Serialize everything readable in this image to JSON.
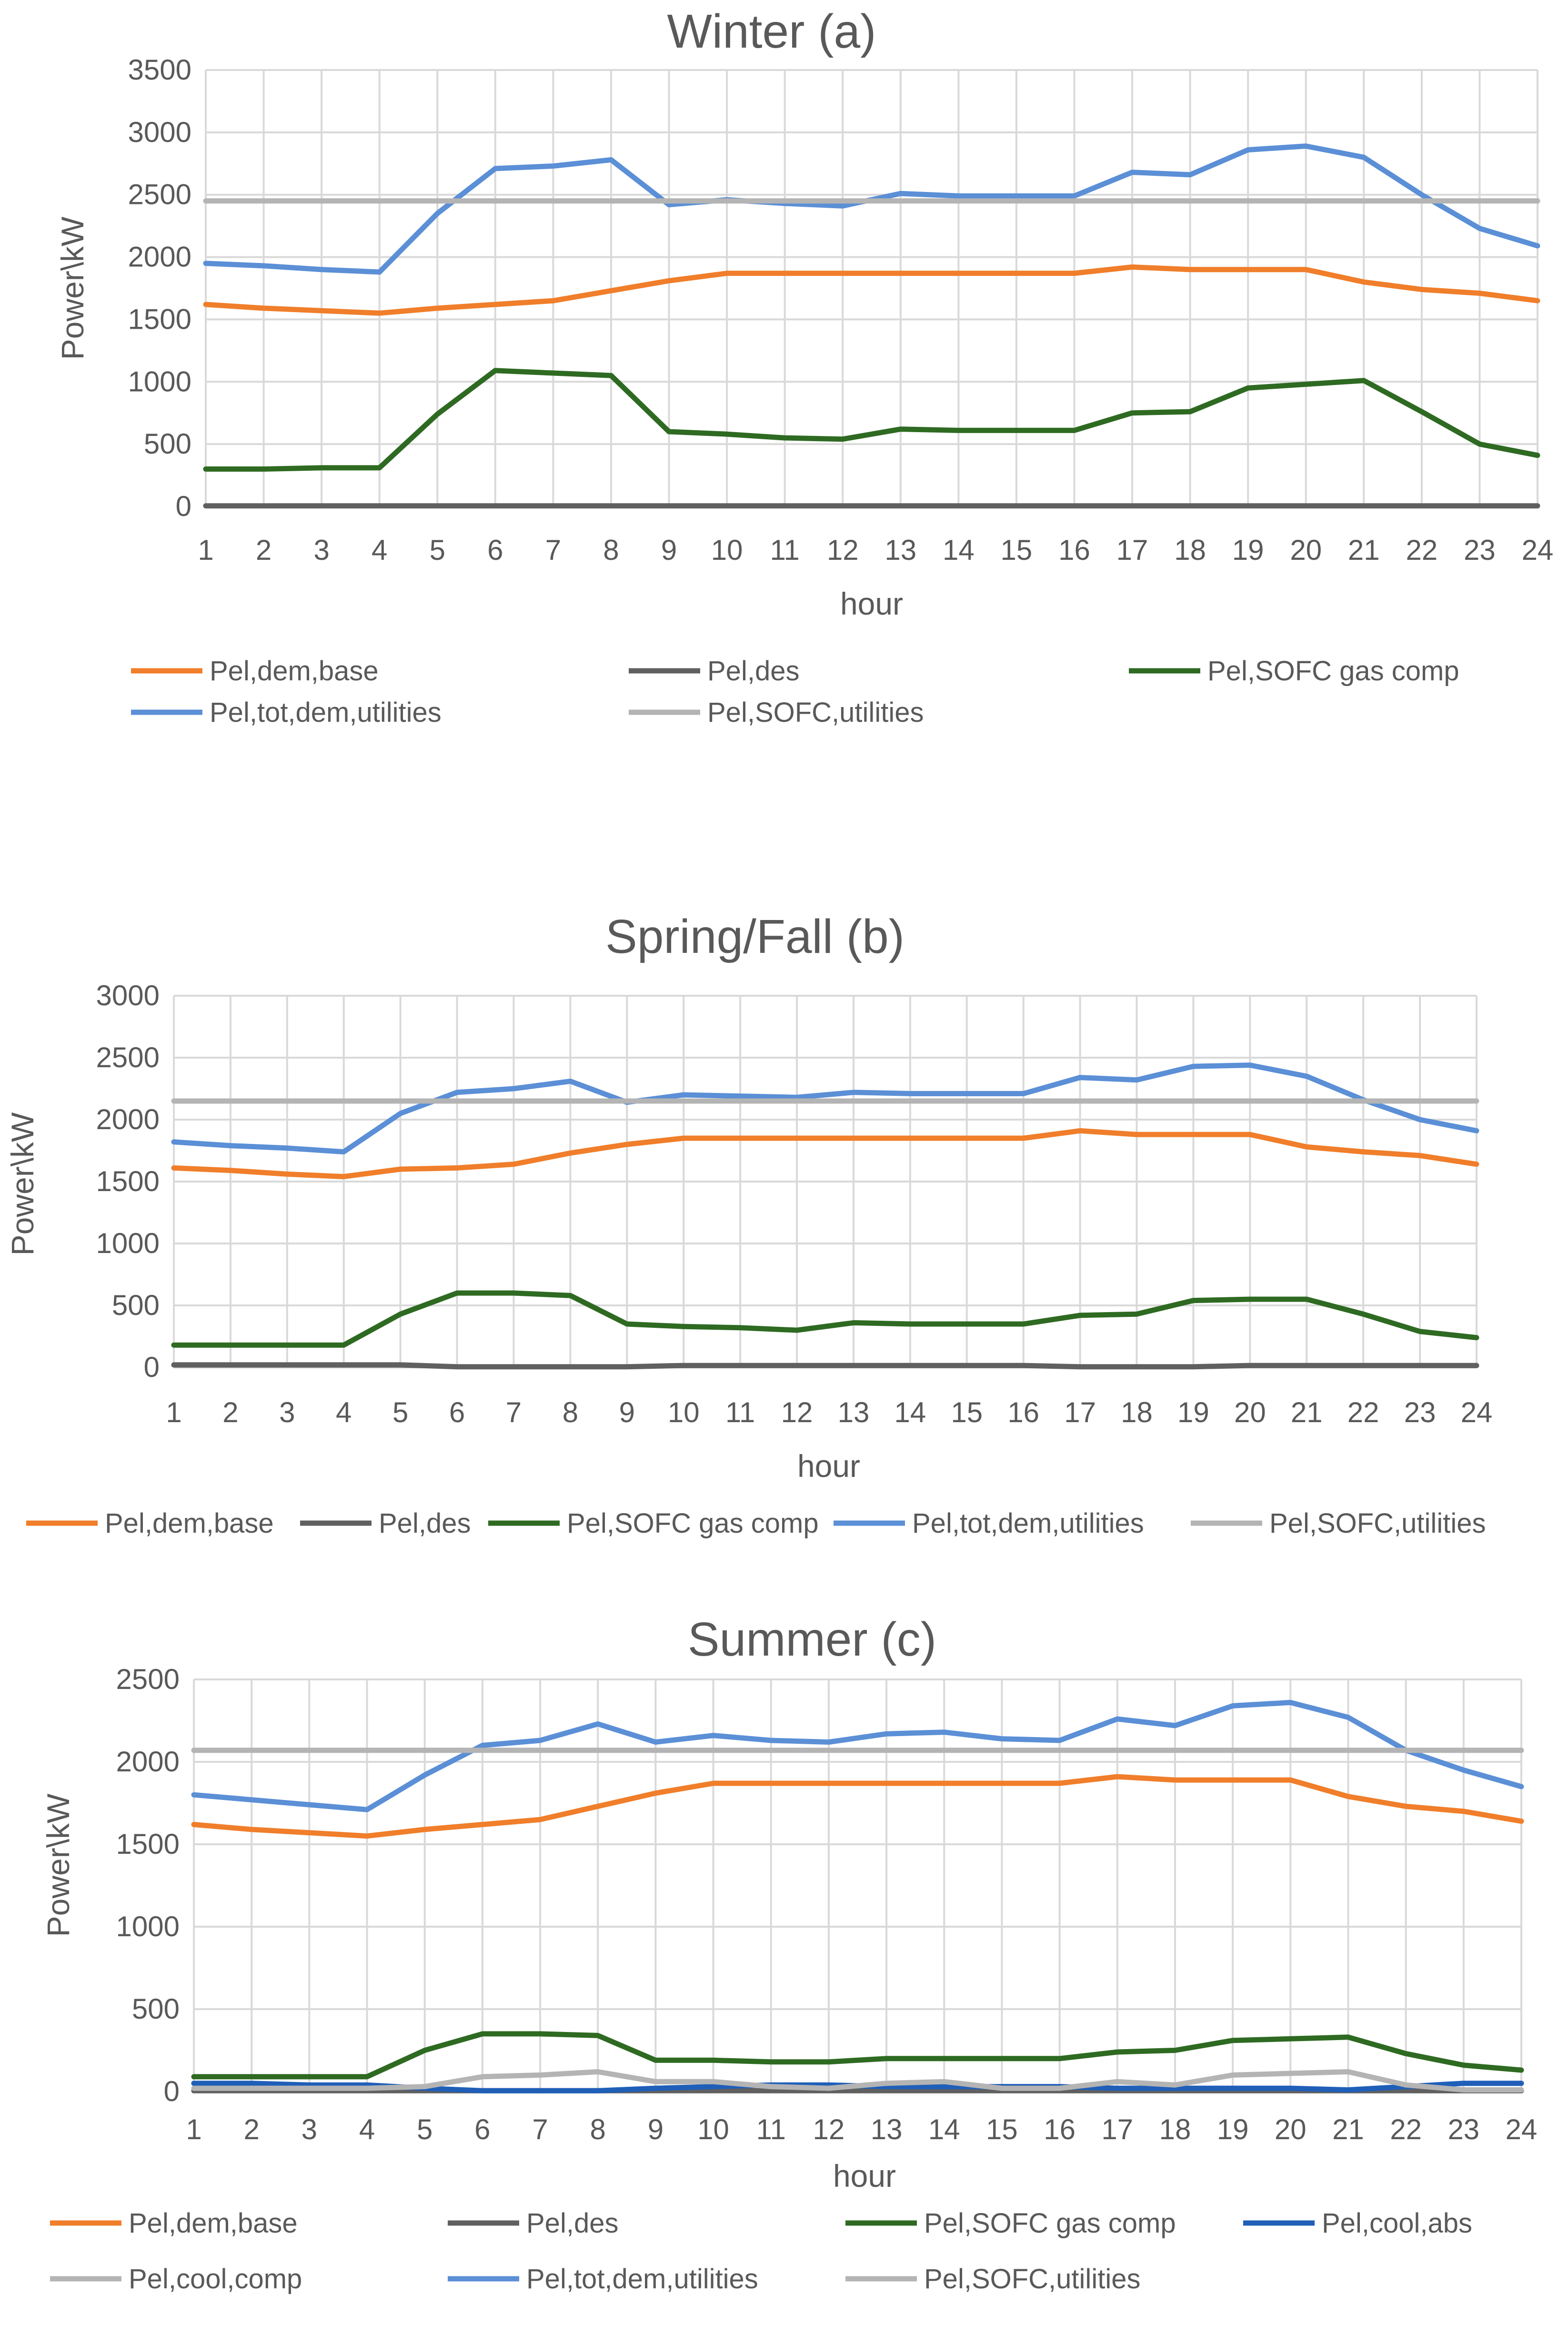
{
  "colors": {
    "base": "#F07E2A",
    "des": "#606060",
    "gas": "#2E6A22",
    "util": "#5B8FD6",
    "sofc": "#B4B4B4",
    "abs": "#1F5FB8",
    "comp": "#B4B4B4",
    "grid": "#D9D9D9",
    "axis": "#BFBFBF",
    "text": "#595959"
  },
  "chart_data": [
    {
      "type": "line",
      "title": "Winter (a)",
      "xlabel": "hour",
      "ylabel": "Power\\kW",
      "ylim": [
        0,
        3500
      ],
      "yticks": [
        "0",
        "500",
        "1000",
        "1500",
        "2000",
        "2500",
        "3000",
        "3500"
      ],
      "categories": [
        "1",
        "2",
        "3",
        "4",
        "5",
        "6",
        "7",
        "8",
        "9",
        "10",
        "11",
        "12",
        "13",
        "14",
        "15",
        "16",
        "17",
        "18",
        "19",
        "20",
        "21",
        "22",
        "23",
        "24"
      ],
      "grid": true,
      "legend": "bottom",
      "series": [
        {
          "name": "Pel,dem,base",
          "color_key": "base",
          "values": [
            1620,
            1590,
            1570,
            1550,
            1590,
            1620,
            1650,
            1730,
            1810,
            1870,
            1870,
            1870,
            1870,
            1870,
            1870,
            1870,
            1920,
            1900,
            1900,
            1900,
            1800,
            1740,
            1710,
            1650
          ]
        },
        {
          "name": "Pel,des",
          "color_key": "des",
          "values": [
            5,
            5,
            5,
            5,
            5,
            5,
            5,
            5,
            5,
            5,
            5,
            5,
            5,
            5,
            5,
            5,
            5,
            5,
            5,
            5,
            5,
            5,
            5,
            5
          ]
        },
        {
          "name": "Pel,SOFC gas comp",
          "color_key": "gas",
          "values": [
            300,
            300,
            310,
            310,
            740,
            1090,
            1070,
            1050,
            600,
            580,
            550,
            540,
            620,
            610,
            610,
            610,
            750,
            760,
            950,
            980,
            1010,
            760,
            500,
            410
          ]
        },
        {
          "name": "Pel,tot,dem,utilities",
          "color_key": "util",
          "values": [
            1950,
            1930,
            1900,
            1880,
            2350,
            2710,
            2730,
            2780,
            2420,
            2460,
            2430,
            2410,
            2510,
            2490,
            2490,
            2490,
            2680,
            2660,
            2860,
            2890,
            2800,
            2500,
            2230,
            2090
          ]
        },
        {
          "name": "Pel,SOFC,utilities",
          "color_key": "sofc",
          "values": [
            2450,
            2450,
            2450,
            2450,
            2450,
            2450,
            2450,
            2450,
            2450,
            2450,
            2450,
            2450,
            2450,
            2450,
            2450,
            2450,
            2450,
            2450,
            2450,
            2450,
            2450,
            2450,
            2450,
            2450
          ]
        }
      ],
      "legend_rows": [
        [
          0,
          1,
          2
        ],
        [
          3,
          4
        ]
      ]
    },
    {
      "type": "line",
      "title": "Spring/Fall (b)",
      "xlabel": "hour",
      "ylabel": "Power\\kW",
      "ylim": [
        0,
        3000
      ],
      "yticks": [
        "0",
        "500",
        "1000",
        "1500",
        "2000",
        "2500",
        "3000"
      ],
      "categories": [
        "1",
        "2",
        "3",
        "4",
        "5",
        "6",
        "7",
        "8",
        "9",
        "10",
        "11",
        "12",
        "13",
        "14",
        "15",
        "16",
        "17",
        "18",
        "19",
        "20",
        "21",
        "22",
        "23",
        "24"
      ],
      "grid": true,
      "legend": "bottom",
      "series": [
        {
          "name": "Pel,dem,base",
          "color_key": "base",
          "values": [
            1610,
            1590,
            1560,
            1540,
            1600,
            1610,
            1640,
            1730,
            1800,
            1850,
            1850,
            1850,
            1850,
            1850,
            1850,
            1850,
            1910,
            1880,
            1880,
            1880,
            1780,
            1740,
            1710,
            1640
          ]
        },
        {
          "name": "Pel,des",
          "color_key": "des",
          "values": [
            20,
            20,
            20,
            20,
            20,
            5,
            5,
            5,
            5,
            15,
            15,
            15,
            15,
            15,
            15,
            15,
            5,
            5,
            5,
            15,
            15,
            15,
            15,
            15
          ]
        },
        {
          "name": "Pel,SOFC gas comp",
          "color_key": "gas",
          "values": [
            180,
            180,
            180,
            180,
            430,
            600,
            600,
            580,
            350,
            330,
            320,
            300,
            360,
            350,
            350,
            350,
            420,
            430,
            540,
            550,
            550,
            430,
            290,
            240
          ]
        },
        {
          "name": "Pel,tot,dem,utilities",
          "color_key": "util",
          "values": [
            1820,
            1790,
            1770,
            1740,
            2050,
            2220,
            2250,
            2310,
            2140,
            2200,
            2190,
            2180,
            2220,
            2210,
            2210,
            2210,
            2340,
            2320,
            2430,
            2440,
            2350,
            2160,
            2000,
            1910
          ]
        },
        {
          "name": "Pel,SOFC,utilities",
          "color_key": "sofc",
          "values": [
            2150,
            2150,
            2150,
            2150,
            2150,
            2150,
            2150,
            2150,
            2150,
            2150,
            2150,
            2150,
            2150,
            2150,
            2150,
            2150,
            2150,
            2150,
            2150,
            2150,
            2150,
            2150,
            2150,
            2150
          ]
        }
      ],
      "legend_rows": [
        [
          0,
          1,
          2,
          3,
          4
        ]
      ]
    },
    {
      "type": "line",
      "title": "Summer (c)",
      "xlabel": "hour",
      "ylabel": "Power\\kW",
      "ylim": [
        0,
        2500
      ],
      "yticks": [
        "0",
        "500",
        "1000",
        "1500",
        "2000",
        "2500"
      ],
      "categories": [
        "1",
        "2",
        "3",
        "4",
        "5",
        "6",
        "7",
        "8",
        "9",
        "10",
        "11",
        "12",
        "13",
        "14",
        "15",
        "16",
        "17",
        "18",
        "19",
        "20",
        "21",
        "22",
        "23",
        "24"
      ],
      "grid": true,
      "legend": "bottom",
      "series": [
        {
          "name": "Pel,dem,base",
          "color_key": "base",
          "values": [
            1620,
            1590,
            1570,
            1550,
            1590,
            1620,
            1650,
            1730,
            1810,
            1870,
            1870,
            1870,
            1870,
            1870,
            1870,
            1870,
            1910,
            1890,
            1890,
            1890,
            1790,
            1730,
            1700,
            1640
          ]
        },
        {
          "name": "Pel,des",
          "color_key": "des",
          "values": [
            5,
            5,
            5,
            5,
            5,
            5,
            5,
            5,
            5,
            5,
            5,
            5,
            5,
            5,
            5,
            5,
            5,
            5,
            5,
            5,
            5,
            5,
            5,
            5
          ]
        },
        {
          "name": "Pel,SOFC gas comp",
          "color_key": "gas",
          "values": [
            90,
            90,
            90,
            90,
            250,
            350,
            350,
            340,
            190,
            190,
            180,
            180,
            200,
            200,
            200,
            200,
            240,
            250,
            310,
            320,
            330,
            230,
            160,
            130
          ]
        },
        {
          "name": "Pel,cool,abs",
          "color_key": "abs",
          "values": [
            50,
            50,
            40,
            40,
            20,
            5,
            5,
            5,
            20,
            30,
            40,
            40,
            30,
            30,
            30,
            30,
            20,
            20,
            20,
            20,
            10,
            30,
            50,
            50
          ]
        },
        {
          "name": "Pel,cool,comp",
          "color_key": "comp",
          "values": [
            20,
            20,
            20,
            20,
            30,
            90,
            100,
            120,
            60,
            60,
            30,
            20,
            50,
            60,
            20,
            20,
            60,
            40,
            100,
            110,
            120,
            40,
            10,
            10
          ]
        },
        {
          "name": "Pel,tot,dem,utilities",
          "color_key": "util",
          "values": [
            1800,
            1770,
            1740,
            1710,
            1920,
            2100,
            2130,
            2230,
            2120,
            2160,
            2130,
            2120,
            2170,
            2180,
            2140,
            2130,
            2260,
            2220,
            2340,
            2360,
            2270,
            2070,
            1950,
            1850
          ]
        },
        {
          "name": "Pel,SOFC,utilities",
          "color_key": "sofc",
          "values": [
            2070,
            2070,
            2070,
            2070,
            2070,
            2070,
            2070,
            2070,
            2070,
            2070,
            2070,
            2070,
            2070,
            2070,
            2070,
            2070,
            2070,
            2070,
            2070,
            2070,
            2070,
            2070,
            2070,
            2070
          ]
        }
      ],
      "legend_rows": [
        [
          0,
          1,
          2,
          3
        ],
        [
          4,
          5,
          6
        ]
      ]
    }
  ]
}
